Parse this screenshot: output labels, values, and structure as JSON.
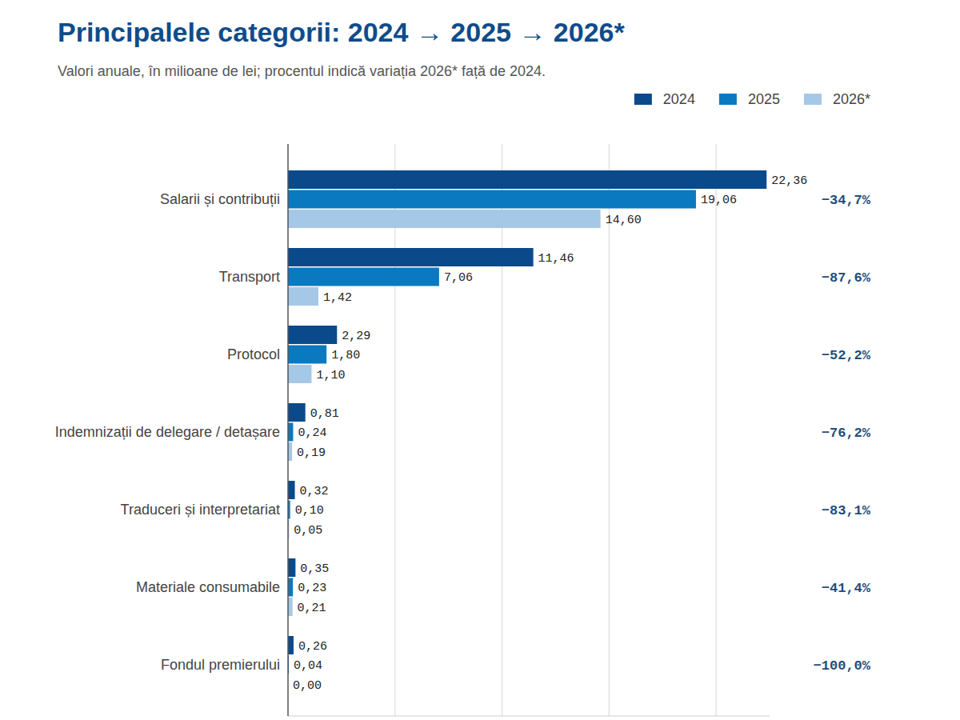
{
  "chart_data": {
    "type": "bar",
    "orientation": "horizontal",
    "title": "Principalele categorii: 2024 → 2025 → 2026*",
    "subtitle": "Valori anuale, în milioane de lei; procentul indică variația 2026* față de 2024.",
    "categories": [
      "Salarii și contribuții",
      "Transport",
      "Protocol",
      "Indemnizații de delegare / detașare",
      "Traduceri și interpretariat",
      "Materiale consumabile",
      "Fondul premierului"
    ],
    "series": [
      {
        "name": "2024",
        "color": "#0b4a8a",
        "values": [
          22.36,
          11.46,
          2.29,
          0.81,
          0.32,
          0.35,
          0.26
        ],
        "value_labels": [
          "22,36",
          "11,46",
          "2,29",
          "0,81",
          "0,32",
          "0,35",
          "0,26"
        ]
      },
      {
        "name": "2025",
        "color": "#0a79c0",
        "values": [
          19.06,
          7.06,
          1.8,
          0.24,
          0.1,
          0.23,
          0.04
        ],
        "value_labels": [
          "19,06",
          "7,06",
          "1,80",
          "0,24",
          "0,10",
          "0,23",
          "0,04"
        ]
      },
      {
        "name": "2026*",
        "color": "#a5c8e6",
        "values": [
          14.6,
          1.42,
          1.1,
          0.19,
          0.05,
          0.21,
          0.0
        ],
        "value_labels": [
          "14,60",
          "1,42",
          "1,10",
          "0,19",
          "0,05",
          "0,21",
          "0,00"
        ]
      }
    ],
    "variation": {
      "values": [
        -34.7,
        -87.6,
        -52.2,
        -76.2,
        -83.1,
        -41.4,
        -100.0
      ],
      "value_labels": [
        "−34,7%",
        "−87,6%",
        "−52,2%",
        "−76,2%",
        "−83,1%",
        "−41,4%",
        "−100,0%"
      ]
    },
    "xlim": [
      0,
      22.5
    ],
    "xticks": [
      0,
      5,
      10,
      15,
      20
    ],
    "grid": true,
    "tick_labels": false,
    "data_labels": true,
    "legend": "top-right"
  }
}
